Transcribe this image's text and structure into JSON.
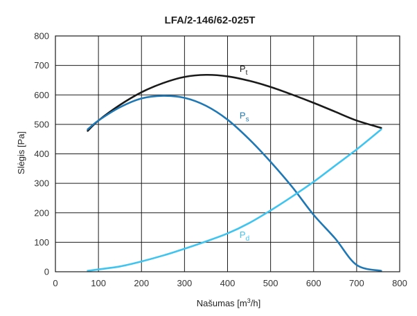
{
  "chart_data": {
    "type": "line",
    "title": "LFA/2-146/62-025T",
    "xlabel": "Našumas [m³/h]",
    "ylabel": "Slėgis [Pa]",
    "xlim": [
      0,
      800
    ],
    "ylim": [
      0,
      800
    ],
    "xticks": [
      0,
      100,
      200,
      300,
      400,
      500,
      600,
      700,
      800
    ],
    "yticks": [
      0,
      100,
      200,
      300,
      400,
      500,
      600,
      700,
      800
    ],
    "grid": true,
    "series": [
      {
        "name": "Pt",
        "label_main": "P",
        "label_sub": "t",
        "color": "#1a1a1a",
        "label_at": [
          428,
          678
        ],
        "x": [
          75,
          100,
          150,
          200,
          250,
          300,
          350,
          400,
          450,
          500,
          550,
          600,
          650,
          700,
          757
        ],
        "y": [
          478,
          513,
          566,
          609,
          640,
          661,
          668,
          663,
          648,
          627,
          601,
          573,
          543,
          513,
          488
        ]
      },
      {
        "name": "Ps",
        "label_main": "P",
        "label_sub": "s",
        "color": "#1f77b4",
        "label_at": [
          428,
          520
        ],
        "x": [
          75,
          100,
          150,
          200,
          250,
          300,
          350,
          400,
          450,
          500,
          550,
          600,
          650,
          700,
          757
        ],
        "y": [
          483,
          513,
          558,
          588,
          597,
          590,
          563,
          516,
          450,
          373,
          288,
          193,
          113,
          23,
          3
        ]
      },
      {
        "name": "Pd",
        "label_main": "P",
        "label_sub": "d",
        "color": "#3fc4f0",
        "label_at": [
          428,
          115
        ],
        "x": [
          75,
          100,
          150,
          200,
          250,
          300,
          350,
          400,
          450,
          500,
          550,
          600,
          650,
          700,
          757
        ],
        "y": [
          3,
          8,
          18,
          35,
          55,
          78,
          103,
          130,
          165,
          208,
          255,
          305,
          360,
          415,
          483
        ]
      }
    ]
  }
}
